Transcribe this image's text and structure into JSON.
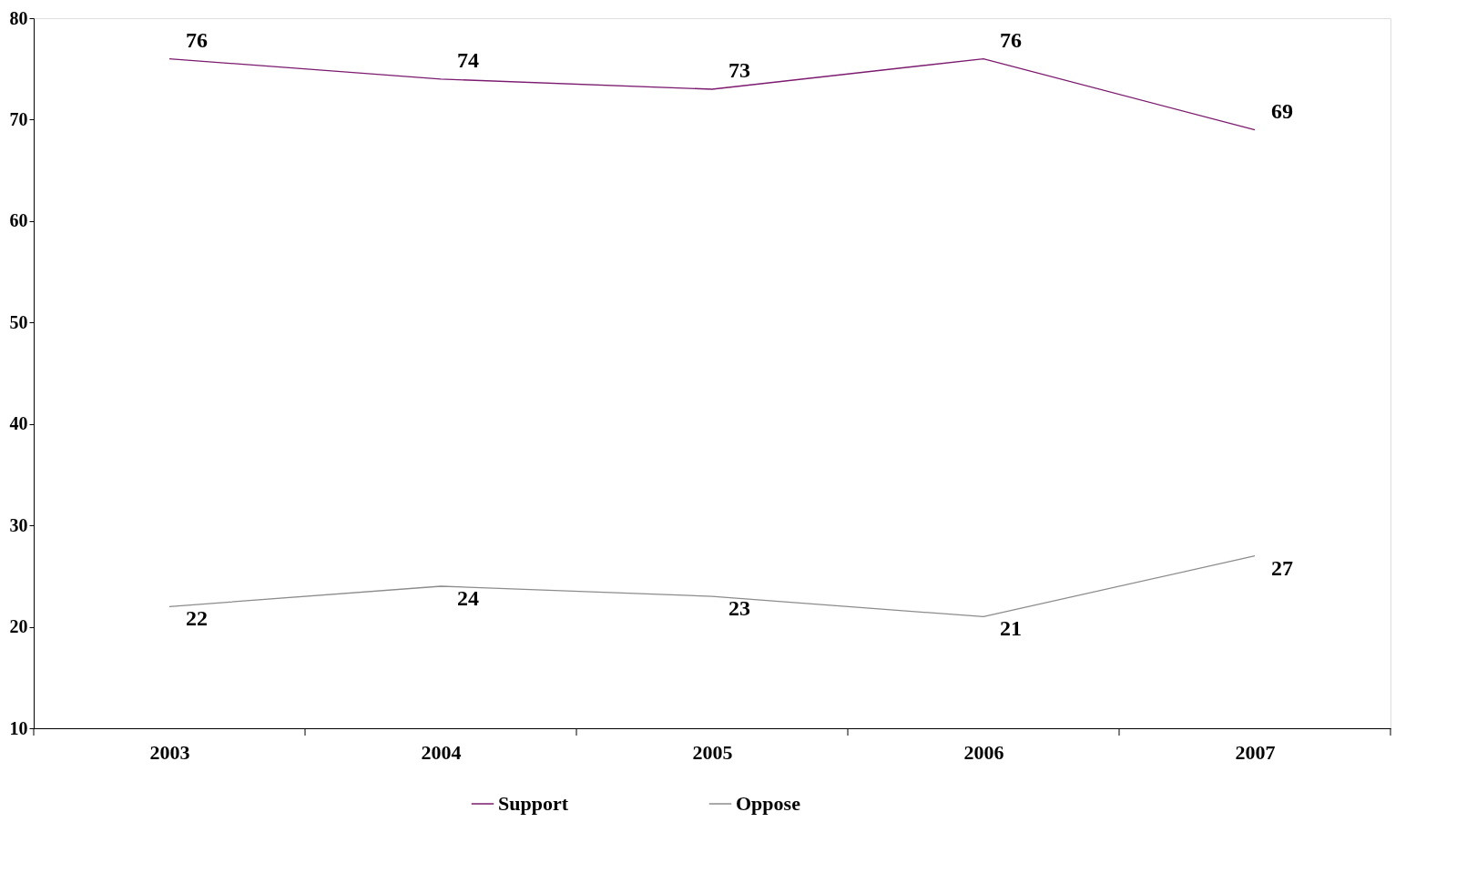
{
  "chart_data": {
    "type": "line",
    "categories": [
      "2003",
      "2004",
      "2005",
      "2006",
      "2007"
    ],
    "series": [
      {
        "name": "Support",
        "color": "#7b1a6e",
        "values": [
          76,
          74,
          73,
          76,
          69
        ]
      },
      {
        "name": "Oppose",
        "color": "#8c8c8c",
        "values": [
          22,
          24,
          23,
          21,
          27
        ]
      }
    ],
    "ylim": [
      10,
      80
    ],
    "yticks": [
      10,
      20,
      30,
      40,
      50,
      60,
      70,
      80
    ],
    "grid": false,
    "legend": "bottom",
    "data_labels": true,
    "marker": "none",
    "line_style": "solid"
  }
}
